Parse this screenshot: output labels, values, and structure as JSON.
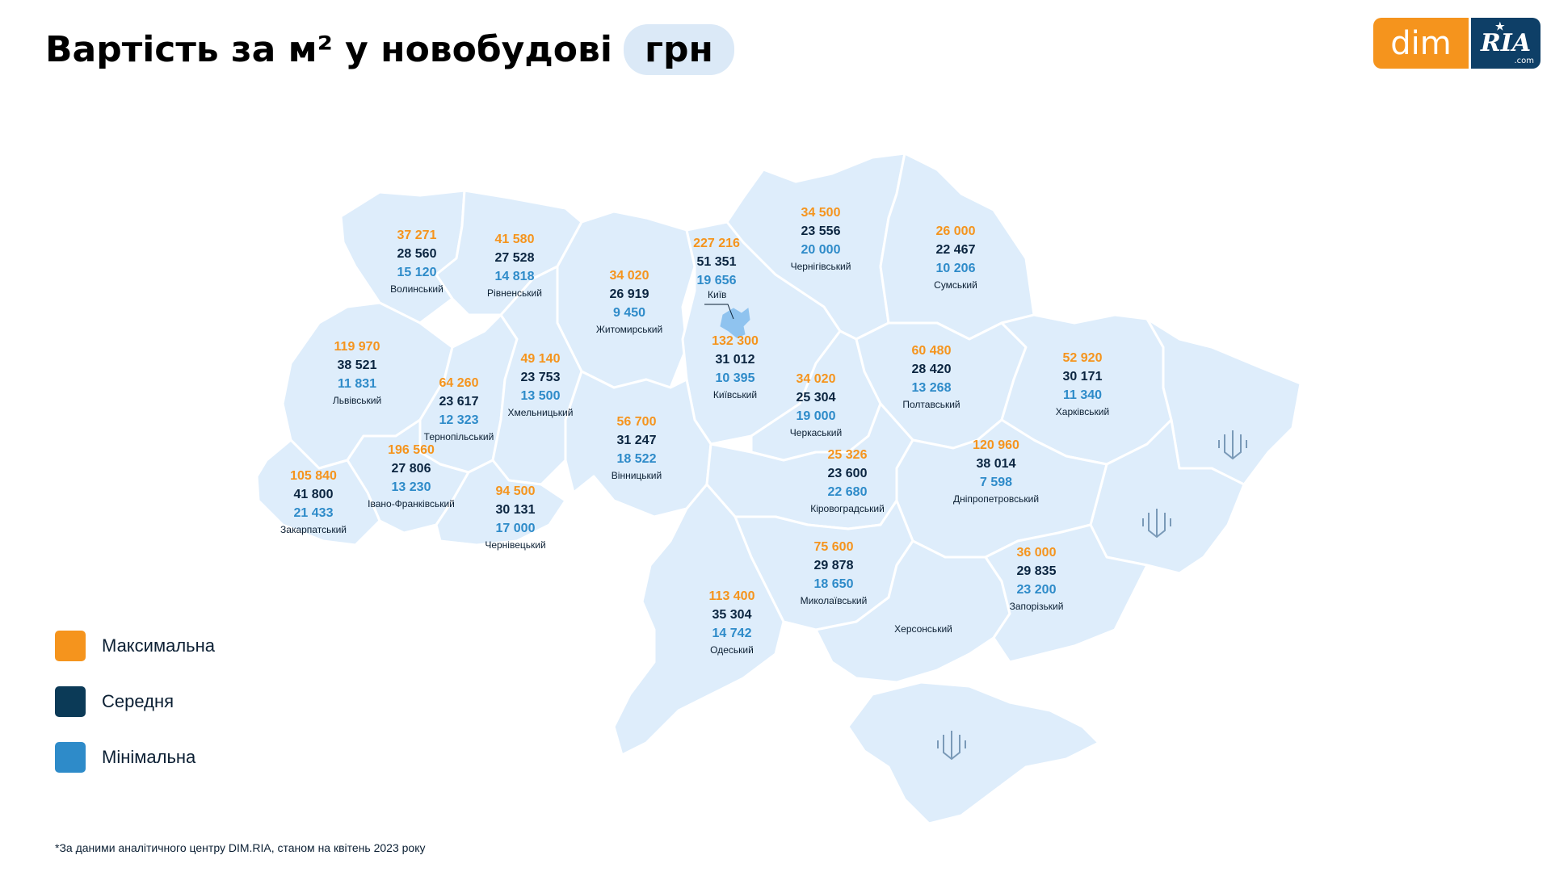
{
  "header": {
    "title": "Вартість за м² у новобудові",
    "unit": "грн"
  },
  "logo": {
    "left_text": "dim",
    "right_text": "RIA",
    "right_suffix": ".com"
  },
  "colors": {
    "max": "#f5941d",
    "avg": "#0b2540",
    "min": "#2e8bc9",
    "map_fill": "#deedfb",
    "map_border": "#ffffff"
  },
  "legend": [
    {
      "label": "Максимальна",
      "color": "#f5941d"
    },
    {
      "label": "Середня",
      "color": "#0b3a57"
    },
    {
      "label": "Мінімальна",
      "color": "#2e8bc9"
    }
  ],
  "regions": [
    {
      "id": "volyn",
      "name": "Волинський",
      "max": "37 271",
      "avg": "28 560",
      "min": "15 120"
    },
    {
      "id": "rivne",
      "name": "Рівненський",
      "max": "41 580",
      "avg": "27 528",
      "min": "14 818"
    },
    {
      "id": "zhytomyr",
      "name": "Житомирський",
      "max": "34 020",
      "avg": "26 919",
      "min": "9 450"
    },
    {
      "id": "kyiv_city",
      "name": "Київ",
      "max": "227 216",
      "avg": "51 351",
      "min": "19 656"
    },
    {
      "id": "chernihiv",
      "name": "Чернігівський",
      "max": "34 500",
      "avg": "23 556",
      "min": "20 000"
    },
    {
      "id": "sumy",
      "name": "Сумський",
      "max": "26 000",
      "avg": "22 467",
      "min": "10 206"
    },
    {
      "id": "lviv",
      "name": "Львівський",
      "max": "119 970",
      "avg": "38 521",
      "min": "11 831"
    },
    {
      "id": "khmelnytskyi",
      "name": "Хмельницький",
      "max": "49 140",
      "avg": "23 753",
      "min": "13 500"
    },
    {
      "id": "ternopil",
      "name": "Тернопільський",
      "max": "64 260",
      "avg": "23 617",
      "min": "12 323"
    },
    {
      "id": "kyiv_obl",
      "name": "Київський",
      "max": "132 300",
      "avg": "31 012",
      "min": "10 395"
    },
    {
      "id": "cherkasy",
      "name": "Черкаський",
      "max": "34 020",
      "avg": "25 304",
      "min": "19 000"
    },
    {
      "id": "poltava",
      "name": "Полтавський",
      "max": "60 480",
      "avg": "28 420",
      "min": "13 268"
    },
    {
      "id": "kharkiv",
      "name": "Харківський",
      "max": "52 920",
      "avg": "30 171",
      "min": "11 340"
    },
    {
      "id": "vinnytsia",
      "name": "Вінницький",
      "max": "56 700",
      "avg": "31 247",
      "min": "18 522"
    },
    {
      "id": "ivano",
      "name": "Івано-Франківський",
      "max": "196 560",
      "avg": "27 806",
      "min": "13 230"
    },
    {
      "id": "zakarpattia",
      "name": "Закарпатський",
      "max": "105 840",
      "avg": "41 800",
      "min": "21 433"
    },
    {
      "id": "chernivtsi",
      "name": "Чернівецький",
      "max": "94 500",
      "avg": "30 131",
      "min": "17 000"
    },
    {
      "id": "kirovohrad",
      "name": "Кіровоградський",
      "max": "25 326",
      "avg": "23 600",
      "min": "22 680"
    },
    {
      "id": "dnipro",
      "name": "Дніпропетровський",
      "max": "120 960",
      "avg": "38 014",
      "min": "7 598"
    },
    {
      "id": "mykolaiv",
      "name": "Миколаївський",
      "max": "75 600",
      "avg": "29 878",
      "min": "18 650"
    },
    {
      "id": "zaporizhzhia",
      "name": "Запорізький",
      "max": "36 000",
      "avg": "29 835",
      "min": "23 200"
    },
    {
      "id": "odesa",
      "name": "Одеський",
      "max": "113 400",
      "avg": "35 304",
      "min": "14 742"
    }
  ],
  "unlabeled_regions": [
    {
      "id": "kherson",
      "name": "Херсонський"
    }
  ],
  "footnote": "*За даними аналітичного центру DIM.RIA, станом на квітень 2023 року"
}
